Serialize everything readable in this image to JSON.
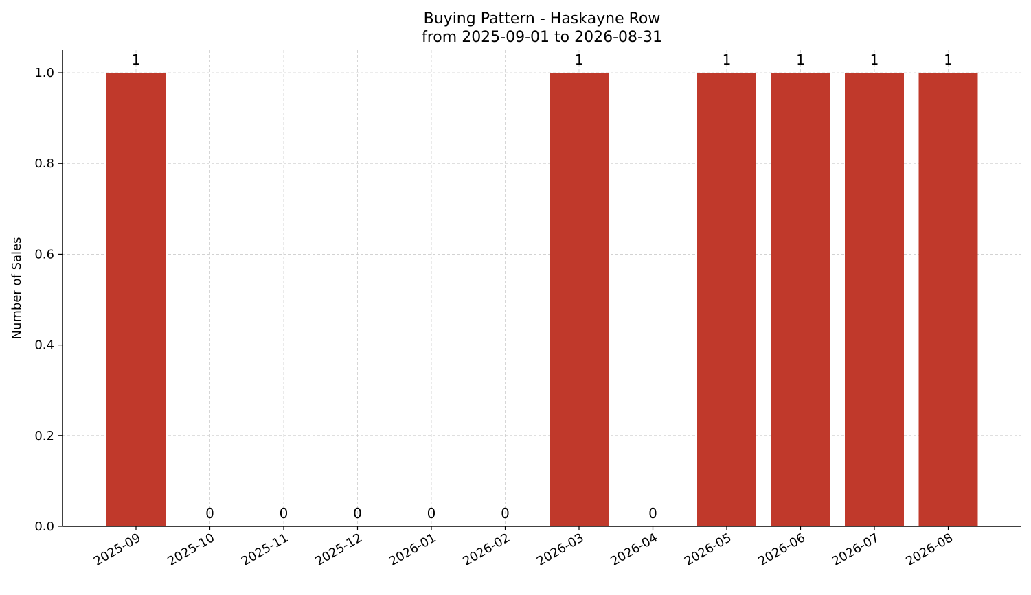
{
  "chart_data": {
    "type": "bar",
    "title": "Buying Pattern - Haskayne Row",
    "subtitle": "from 2025-09-01 to 2026-08-31",
    "xlabel": "",
    "ylabel": "Number of Sales",
    "categories": [
      "2025-09",
      "2025-10",
      "2025-11",
      "2025-12",
      "2026-01",
      "2026-02",
      "2026-03",
      "2026-04",
      "2026-05",
      "2026-06",
      "2026-07",
      "2026-08"
    ],
    "values": [
      1,
      0,
      0,
      0,
      0,
      0,
      1,
      0,
      1,
      1,
      1,
      1
    ],
    "data_labels": [
      "1",
      "0",
      "0",
      "0",
      "0",
      "0",
      "1",
      "0",
      "1",
      "1",
      "1",
      "1"
    ],
    "y_ticks": [
      "0.0",
      "0.2",
      "0.4",
      "0.6",
      "0.8",
      "1.0"
    ],
    "ylim": [
      0,
      1.05
    ],
    "grid": true,
    "bar_color": "#c0392b"
  }
}
